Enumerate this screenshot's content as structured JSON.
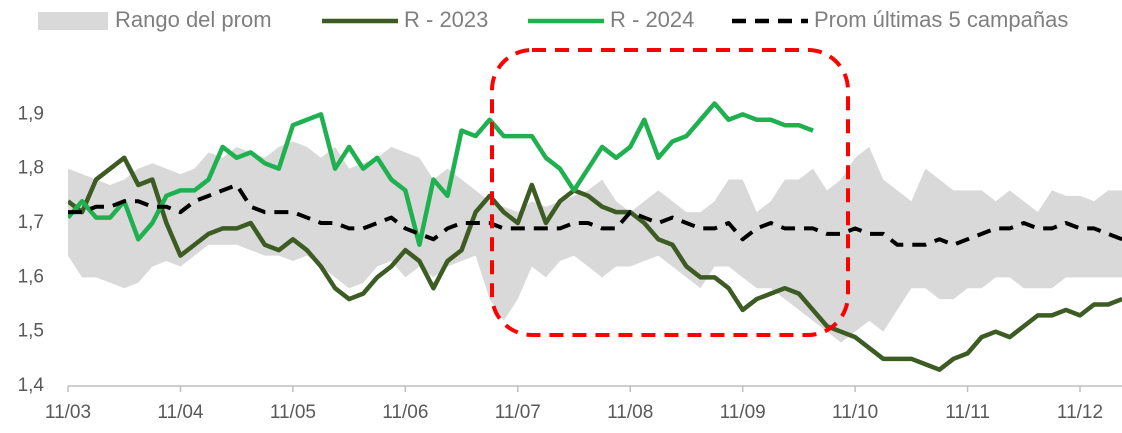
{
  "chart_data": {
    "type": "line",
    "categories": [
      "11/03",
      null,
      null,
      null,
      null,
      null,
      null,
      null,
      "11/04",
      null,
      null,
      null,
      null,
      null,
      null,
      null,
      "11/05",
      null,
      null,
      null,
      null,
      null,
      null,
      null,
      "11/06",
      null,
      null,
      null,
      null,
      null,
      null,
      null,
      "11/07",
      null,
      null,
      null,
      null,
      null,
      null,
      null,
      "11/08",
      null,
      null,
      null,
      null,
      null,
      null,
      null,
      "11/09",
      null,
      null,
      null,
      null,
      null,
      null,
      null,
      "11/10",
      null,
      null,
      null,
      null,
      null,
      null,
      null,
      "11/11",
      null,
      null,
      null,
      null,
      null,
      null,
      null,
      "11/12",
      null,
      null,
      null
    ],
    "ylim": [
      1.4,
      2.0
    ],
    "yticks": [
      {
        "value": 1.4,
        "label": "1,4"
      },
      {
        "value": 1.5,
        "label": "1,5"
      },
      {
        "value": 1.6,
        "label": "1,6"
      },
      {
        "value": 1.7,
        "label": "1,7"
      },
      {
        "value": 1.8,
        "label": "1,8"
      },
      {
        "value": 1.9,
        "label": "1,9"
      }
    ],
    "series": [
      {
        "name": "Rango del prom",
        "color": "#d9d9d9",
        "band": true,
        "high": [
          1.8,
          1.79,
          1.78,
          1.77,
          1.78,
          1.8,
          1.81,
          1.8,
          1.79,
          1.8,
          1.83,
          1.82,
          1.84,
          1.83,
          1.82,
          1.84,
          1.85,
          1.84,
          1.82,
          1.84,
          1.8,
          1.81,
          1.82,
          1.84,
          1.83,
          1.82,
          1.78,
          1.8,
          1.78,
          1.76,
          1.74,
          1.73,
          1.72,
          1.74,
          1.73,
          1.74,
          1.75,
          1.76,
          1.78,
          1.74,
          1.72,
          1.74,
          1.76,
          1.74,
          1.72,
          1.72,
          1.74,
          1.78,
          1.78,
          1.72,
          1.74,
          1.78,
          1.78,
          1.8,
          1.76,
          1.78,
          1.82,
          1.84,
          1.78,
          1.76,
          1.74,
          1.8,
          1.78,
          1.76,
          1.76,
          1.76,
          1.74,
          1.76,
          1.74,
          1.72,
          1.76,
          1.75,
          1.75,
          1.74,
          1.76,
          1.76
        ],
        "low": [
          1.64,
          1.6,
          1.6,
          1.59,
          1.58,
          1.59,
          1.62,
          1.63,
          1.62,
          1.64,
          1.66,
          1.66,
          1.66,
          1.65,
          1.64,
          1.64,
          1.63,
          1.64,
          1.62,
          1.6,
          1.58,
          1.59,
          1.62,
          1.63,
          1.6,
          1.62,
          1.6,
          1.62,
          1.63,
          1.64,
          1.56,
          1.52,
          1.56,
          1.62,
          1.6,
          1.63,
          1.64,
          1.62,
          1.6,
          1.62,
          1.62,
          1.63,
          1.64,
          1.62,
          1.6,
          1.58,
          1.62,
          1.62,
          1.6,
          1.58,
          1.58,
          1.56,
          1.54,
          1.52,
          1.5,
          1.48,
          1.5,
          1.52,
          1.5,
          1.54,
          1.58,
          1.58,
          1.56,
          1.56,
          1.58,
          1.58,
          1.6,
          1.6,
          1.58,
          1.58,
          1.58,
          1.6,
          1.6,
          1.6,
          1.6,
          1.6
        ]
      },
      {
        "name": "R - 2023",
        "color": "#3d5c24",
        "values": [
          1.74,
          1.72,
          1.78,
          1.8,
          1.82,
          1.77,
          1.78,
          1.7,
          1.64,
          1.66,
          1.68,
          1.69,
          1.69,
          1.7,
          1.66,
          1.65,
          1.67,
          1.65,
          1.62,
          1.58,
          1.56,
          1.57,
          1.6,
          1.62,
          1.65,
          1.63,
          1.58,
          1.63,
          1.65,
          1.72,
          1.75,
          1.72,
          1.7,
          1.77,
          1.7,
          1.74,
          1.76,
          1.75,
          1.73,
          1.72,
          1.72,
          1.7,
          1.67,
          1.66,
          1.62,
          1.6,
          1.6,
          1.58,
          1.54,
          1.56,
          1.57,
          1.58,
          1.57,
          1.54,
          1.51,
          1.5,
          1.49,
          1.47,
          1.45,
          1.45,
          1.45,
          1.44,
          1.43,
          1.45,
          1.46,
          1.49,
          1.5,
          1.49,
          1.51,
          1.53,
          1.53,
          1.54,
          1.53,
          1.55,
          1.55,
          1.56
        ]
      },
      {
        "name": "R - 2024",
        "color": "#1fb04f",
        "values": [
          1.71,
          1.74,
          1.71,
          1.71,
          1.74,
          1.67,
          1.7,
          1.75,
          1.76,
          1.76,
          1.78,
          1.84,
          1.82,
          1.83,
          1.81,
          1.8,
          1.88,
          1.89,
          1.9,
          1.8,
          1.84,
          1.8,
          1.82,
          1.78,
          1.76,
          1.66,
          1.78,
          1.75,
          1.87,
          1.86,
          1.89,
          1.86,
          1.86,
          1.86,
          1.82,
          1.8,
          1.76,
          1.8,
          1.84,
          1.82,
          1.84,
          1.89,
          1.82,
          1.85,
          1.86,
          1.89,
          1.92,
          1.89,
          1.9,
          1.89,
          1.89,
          1.88,
          1.88,
          1.87,
          null,
          null,
          null,
          null,
          null,
          null,
          null,
          null,
          null,
          null,
          null,
          null,
          null,
          null,
          null,
          null,
          null,
          null,
          null,
          null,
          null,
          null
        ]
      },
      {
        "name": "Prom últimas 5 campañas",
        "color": "#000000",
        "dashed": true,
        "values": [
          1.72,
          1.72,
          1.73,
          1.73,
          1.74,
          1.74,
          1.73,
          1.73,
          1.72,
          1.74,
          1.75,
          1.76,
          1.77,
          1.73,
          1.72,
          1.72,
          1.72,
          1.71,
          1.7,
          1.7,
          1.69,
          1.69,
          1.7,
          1.71,
          1.69,
          1.68,
          1.67,
          1.69,
          1.7,
          1.7,
          1.7,
          1.69,
          1.69,
          1.69,
          1.69,
          1.69,
          1.7,
          1.7,
          1.69,
          1.69,
          1.72,
          1.71,
          1.7,
          1.71,
          1.7,
          1.69,
          1.69,
          1.7,
          1.67,
          1.69,
          1.7,
          1.69,
          1.69,
          1.69,
          1.68,
          1.68,
          1.69,
          1.68,
          1.68,
          1.66,
          1.66,
          1.66,
          1.67,
          1.66,
          1.67,
          1.68,
          1.69,
          1.69,
          1.7,
          1.69,
          1.69,
          1.7,
          1.69,
          1.69,
          1.68,
          1.67
        ]
      }
    ]
  }
}
